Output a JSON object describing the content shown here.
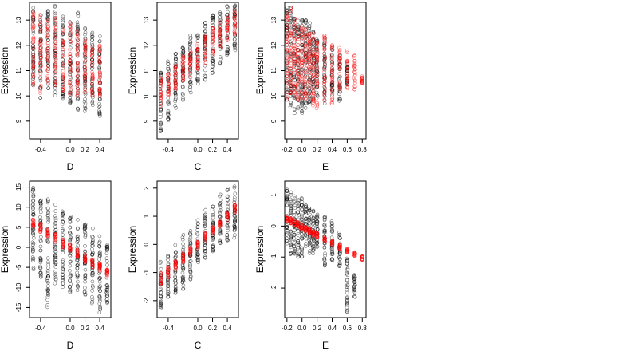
{
  "colors": {
    "black": "#000000",
    "red": "#ff0000"
  },
  "chart_data": [
    {
      "type": "scatter",
      "xlabel": "D",
      "ylabel": "Expression",
      "xlim": [
        -0.55,
        0.55
      ],
      "ylim": [
        8.3,
        13.7
      ],
      "xticks": [
        "-0.4",
        "0.0",
        "0.2",
        "0.4"
      ],
      "xtick_values": [
        -0.4,
        0,
        0.2,
        0.4
      ],
      "yticks": [
        "9",
        "10",
        "11",
        "12",
        "13"
      ],
      "ytick_values": [
        9,
        10,
        11,
        12,
        13
      ],
      "series": [
        {
          "color": "black",
          "x_columns": [
            -0.5,
            -0.4,
            -0.3,
            -0.2,
            -0.1,
            0.0,
            0.1,
            0.2,
            0.3,
            0.4
          ],
          "y_ranges": [
            [
              10.4,
              13.5
            ],
            [
              9.9,
              13.2
            ],
            [
              10.2,
              13.4
            ],
            [
              10.0,
              13.6
            ],
            [
              9.8,
              13.2
            ],
            [
              9.7,
              13.0
            ],
            [
              9.4,
              13.3
            ],
            [
              9.3,
              12.8
            ],
            [
              9.6,
              12.7
            ],
            [
              9.2,
              12.5
            ]
          ]
        },
        {
          "color": "red",
          "x_columns": [
            -0.5,
            -0.4,
            -0.3,
            -0.2,
            -0.1,
            0.0,
            0.1,
            0.2,
            0.3,
            0.4
          ],
          "y_ranges": [
            [
              10.3,
              13.4
            ],
            [
              10.1,
              13.3
            ],
            [
              10.4,
              13.1
            ],
            [
              10.3,
              13.3
            ],
            [
              10.2,
              12.7
            ],
            [
              10.0,
              12.9
            ],
            [
              10.0,
              12.7
            ],
            [
              10.1,
              12.4
            ],
            [
              10.0,
              12.1
            ],
            [
              10.0,
              12.0
            ]
          ]
        }
      ]
    },
    {
      "type": "scatter",
      "xlabel": "C",
      "ylabel": "Expression",
      "xlim": [
        -0.55,
        0.55
      ],
      "ylim": [
        8.3,
        13.7
      ],
      "xticks": [
        "-0.4",
        "0.0",
        "0.2",
        "0.4"
      ],
      "xtick_values": [
        -0.4,
        0,
        0.2,
        0.4
      ],
      "yticks": [
        "9",
        "10",
        "11",
        "12",
        "13"
      ],
      "ytick_values": [
        9,
        10,
        11,
        12,
        13
      ],
      "series": [
        {
          "color": "black",
          "x_columns": [
            -0.5,
            -0.4,
            -0.3,
            -0.2,
            -0.1,
            0.0,
            0.1,
            0.2,
            0.3,
            0.4,
            0.5
          ],
          "y_ranges": [
            [
              8.6,
              11.0
            ],
            [
              9.0,
              11.4
            ],
            [
              9.4,
              11.8
            ],
            [
              9.8,
              12.2
            ],
            [
              9.9,
              12.4
            ],
            [
              10.4,
              12.7
            ],
            [
              10.6,
              12.9
            ],
            [
              10.9,
              13.2
            ],
            [
              11.2,
              13.4
            ],
            [
              11.6,
              13.6
            ],
            [
              11.8,
              13.6
            ]
          ]
        },
        {
          "color": "red",
          "x_columns": [
            -0.5,
            -0.4,
            -0.3,
            -0.2,
            -0.1,
            0.0,
            0.1,
            0.2,
            0.3,
            0.4,
            0.5
          ],
          "y_ranges": [
            [
              9.6,
              10.7
            ],
            [
              9.9,
              11.0
            ],
            [
              10.2,
              11.3
            ],
            [
              10.5,
              11.6
            ],
            [
              10.7,
              11.8
            ],
            [
              11.0,
              12.1
            ],
            [
              11.3,
              12.4
            ],
            [
              11.6,
              12.7
            ],
            [
              11.9,
              13.0
            ],
            [
              12.2,
              13.2
            ],
            [
              12.4,
              13.4
            ]
          ]
        }
      ]
    },
    {
      "type": "scatter",
      "xlabel": "E",
      "ylabel": "Expression",
      "xlim": [
        -0.23,
        0.85
      ],
      "ylim": [
        8.3,
        13.7
      ],
      "xticks": [
        "-0.2",
        "0.0",
        "0.2",
        "0.4",
        "0.6",
        "0.8"
      ],
      "xtick_values": [
        -0.2,
        0,
        0.2,
        0.4,
        0.6,
        0.8
      ],
      "yticks": [
        "9",
        "10",
        "11",
        "12",
        "13"
      ],
      "ytick_values": [
        9,
        10,
        11,
        12,
        13
      ],
      "series": [
        {
          "color": "black",
          "x_columns": [
            -0.2,
            -0.15,
            -0.1,
            -0.05,
            0.0,
            0.05,
            0.1,
            0.15,
            0.2,
            0.3,
            0.4,
            0.5,
            0.6
          ],
          "y_ranges": [
            [
              9.8,
              13.6
            ],
            [
              9.5,
              13.5
            ],
            [
              9.3,
              13.2
            ],
            [
              9.4,
              13.0
            ],
            [
              9.2,
              13.1
            ],
            [
              9.5,
              13.0
            ],
            [
              9.6,
              12.9
            ],
            [
              9.8,
              12.6
            ],
            [
              9.9,
              12.3
            ],
            [
              9.7,
              12.4
            ],
            [
              10.0,
              12.0
            ],
            [
              9.8,
              11.6
            ],
            [
              10.4,
              11.3
            ]
          ]
        },
        {
          "color": "red",
          "x_columns": [
            -0.2,
            -0.15,
            -0.1,
            -0.05,
            0.0,
            0.05,
            0.1,
            0.15,
            0.2,
            0.3,
            0.4,
            0.5,
            0.6,
            0.7,
            0.8
          ],
          "y_ranges": [
            [
              9.8,
              13.4
            ],
            [
              10.0,
              13.5
            ],
            [
              9.9,
              13.1
            ],
            [
              9.8,
              12.9
            ],
            [
              9.9,
              13.0
            ],
            [
              9.8,
              12.7
            ],
            [
              9.9,
              12.6
            ],
            [
              9.6,
              12.5
            ],
            [
              9.5,
              12.3
            ],
            [
              9.8,
              12.4
            ],
            [
              9.6,
              12.1
            ],
            [
              10.2,
              11.9
            ],
            [
              10.3,
              11.8
            ],
            [
              10.2,
              11.6
            ],
            [
              10.5,
              10.8
            ]
          ]
        }
      ]
    },
    {
      "type": "scatter",
      "xlabel": "D",
      "ylabel": "Expression",
      "xlim": [
        -0.55,
        0.55
      ],
      "ylim": [
        -17.5,
        16.5
      ],
      "xticks": [
        "-0.4",
        "0.0",
        "0.2",
        "0.4"
      ],
      "xtick_values": [
        -0.4,
        0,
        0.2,
        0.4
      ],
      "yticks": [
        "-15",
        "-10",
        "-5",
        "0",
        "5",
        "10",
        "15"
      ],
      "ytick_values": [
        -15,
        -10,
        -5,
        0,
        5,
        10,
        15
      ],
      "series": [
        {
          "color": "black",
          "x_columns": [
            -0.5,
            -0.4,
            -0.3,
            -0.2,
            -0.1,
            0.0,
            0.1,
            0.2,
            0.3,
            0.4,
            0.5
          ],
          "y_ranges": [
            [
              -6.0,
              15.0
            ],
            [
              -8.0,
              13.0
            ],
            [
              -15.0,
              12.0
            ],
            [
              -9.0,
              11.0
            ],
            [
              -10.0,
              9.0
            ],
            [
              -12.0,
              8.0
            ],
            [
              -11.0,
              7.0
            ],
            [
              -13.0,
              6.0
            ],
            [
              -14.0,
              5.0
            ],
            [
              -16.5,
              3.0
            ],
            [
              -14.0,
              1.0
            ]
          ]
        },
        {
          "color": "red",
          "x_columns": [
            -0.5,
            -0.4,
            -0.3,
            -0.2,
            -0.1,
            0.0,
            0.1,
            0.2,
            0.3,
            0.4,
            0.5
          ],
          "y_ranges": [
            [
              5.0,
              7.0
            ],
            [
              3.8,
              6.0
            ],
            [
              2.5,
              4.5
            ],
            [
              1.2,
              3.3
            ],
            [
              0.0,
              2.0
            ],
            [
              -1.3,
              0.8
            ],
            [
              -2.5,
              -0.5
            ],
            [
              -3.8,
              -1.6
            ],
            [
              -5.0,
              -3.0
            ],
            [
              -6.0,
              -4.0
            ],
            [
              -7.2,
              -5.3
            ]
          ]
        }
      ]
    },
    {
      "type": "scatter",
      "xlabel": "C",
      "ylabel": "Expression",
      "xlim": [
        -0.55,
        0.55
      ],
      "ylim": [
        -2.6,
        2.25
      ],
      "xticks": [
        "-0.4",
        "0.0",
        "0.2",
        "0.4"
      ],
      "xtick_values": [
        -0.4,
        0,
        0.2,
        0.4
      ],
      "yticks": [
        "-2",
        "-1",
        "0",
        "1",
        "2"
      ],
      "ytick_values": [
        -2,
        -1,
        0,
        1,
        2
      ],
      "series": [
        {
          "color": "black",
          "x_columns": [
            -0.5,
            -0.4,
            -0.3,
            -0.2,
            -0.1,
            0.0,
            0.1,
            0.2,
            0.3,
            0.4,
            0.5
          ],
          "y_ranges": [
            [
              -2.4,
              -0.6
            ],
            [
              -1.9,
              -0.3
            ],
            [
              -1.8,
              0.0
            ],
            [
              -1.6,
              0.4
            ],
            [
              -1.3,
              0.5
            ],
            [
              -0.7,
              0.9
            ],
            [
              -0.5,
              1.3
            ],
            [
              -0.3,
              1.4
            ],
            [
              0.0,
              1.8
            ],
            [
              0.1,
              2.0
            ],
            [
              0.2,
              2.1
            ]
          ]
        },
        {
          "color": "red",
          "x_columns": [
            -0.5,
            -0.4,
            -0.3,
            -0.2,
            -0.1,
            0.0,
            0.1,
            0.2,
            0.3,
            0.4,
            0.5
          ],
          "y_ranges": [
            [
              -1.45,
              -1.0
            ],
            [
              -1.2,
              -0.8
            ],
            [
              -0.9,
              -0.55
            ],
            [
              -0.65,
              -0.3
            ],
            [
              -0.4,
              -0.1
            ],
            [
              -0.15,
              0.15
            ],
            [
              0.1,
              0.4
            ],
            [
              0.35,
              0.65
            ],
            [
              0.6,
              0.9
            ],
            [
              0.85,
              1.15
            ],
            [
              1.1,
              1.4
            ]
          ]
        }
      ]
    },
    {
      "type": "scatter",
      "xlabel": "E",
      "ylabel": "Expression",
      "xlim": [
        -0.23,
        0.85
      ],
      "ylim": [
        -2.95,
        1.45
      ],
      "xticks": [
        "-0.2",
        "0.0",
        "0.2",
        "0.4",
        "0.6",
        "0.8"
      ],
      "xtick_values": [
        -0.2,
        0,
        0.2,
        0.4,
        0.6,
        0.8
      ],
      "yticks": [
        "-2",
        "-1",
        "0",
        "1"
      ],
      "ytick_values": [
        -2,
        -1,
        0,
        1
      ],
      "series": [
        {
          "color": "black",
          "x_columns": [
            -0.2,
            -0.15,
            -0.1,
            -0.05,
            0.0,
            0.05,
            0.1,
            0.15,
            0.2,
            0.3,
            0.4,
            0.5,
            0.6,
            0.7
          ],
          "y_ranges": [
            [
              -0.6,
              1.2
            ],
            [
              -1.0,
              1.1
            ],
            [
              -0.9,
              1.0
            ],
            [
              -1.0,
              0.9
            ],
            [
              -1.1,
              0.9
            ],
            [
              -0.8,
              0.7
            ],
            [
              -0.9,
              0.6
            ],
            [
              -0.9,
              0.5
            ],
            [
              -0.7,
              0.4
            ],
            [
              -1.3,
              0.3
            ],
            [
              -1.1,
              0.2
            ],
            [
              -1.3,
              -0.2
            ],
            [
              -2.8,
              -1.0
            ],
            [
              -2.3,
              -1.5
            ]
          ]
        },
        {
          "color": "red",
          "x_columns": [
            -0.2,
            -0.15,
            -0.1,
            -0.05,
            0.0,
            0.05,
            0.1,
            0.15,
            0.2,
            0.3,
            0.4,
            0.5,
            0.6,
            0.7,
            0.8
          ],
          "y_ranges": [
            [
              0.15,
              0.3
            ],
            [
              0.08,
              0.25
            ],
            [
              0.0,
              0.18
            ],
            [
              -0.05,
              0.12
            ],
            [
              -0.12,
              0.05
            ],
            [
              -0.18,
              -0.02
            ],
            [
              -0.25,
              -0.08
            ],
            [
              -0.32,
              -0.15
            ],
            [
              -0.38,
              -0.22
            ],
            [
              -0.5,
              -0.35
            ],
            [
              -0.62,
              -0.48
            ],
            [
              -0.74,
              -0.6
            ],
            [
              -0.86,
              -0.72
            ],
            [
              -0.98,
              -0.84
            ],
            [
              -1.1,
              -0.96
            ]
          ]
        }
      ]
    }
  ]
}
